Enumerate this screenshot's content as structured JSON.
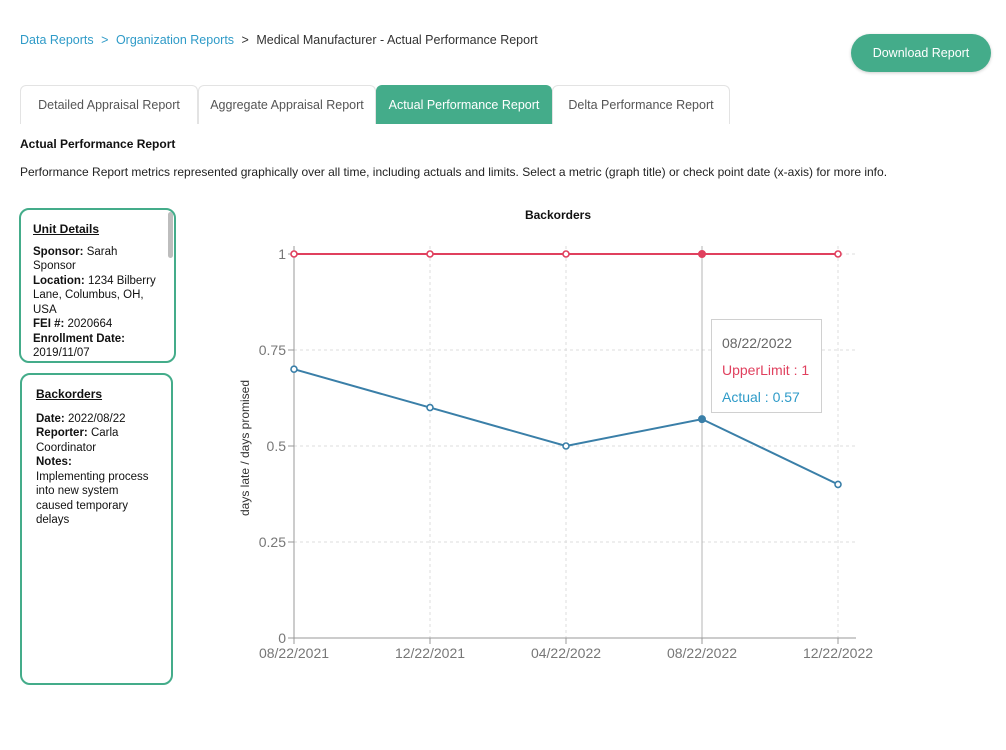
{
  "breadcrumb": {
    "items": [
      "Data Reports",
      "Organization Reports"
    ],
    "separator": ">",
    "current": "Medical Manufacturer - Actual Performance Report"
  },
  "download_label": "Download Report",
  "tabs": [
    {
      "label": "Detailed Appraisal Report",
      "active": false
    },
    {
      "label": "Aggregate Appraisal Report",
      "active": false
    },
    {
      "label": "Actual Performance Report",
      "active": true
    },
    {
      "label": "Delta Performance Report",
      "active": false
    }
  ],
  "section": {
    "title": "Actual Performance Report",
    "description": "Performance Report metrics represented graphically over all time, including actuals and limits. Select a metric (graph title) or check point date (x-axis) for more info."
  },
  "unit_details": {
    "title": "Unit Details",
    "sponsor_label": "Sponsor:",
    "sponsor": "Sarah Sponsor",
    "location_label": "Location:",
    "location": "1234 Bilberry Lane, Columbus, OH, USA",
    "fei_label": "FEI #:",
    "fei": "2020664",
    "enrollment_label": "Enrollment Date:",
    "enrollment": "2019/11/07"
  },
  "metric_card": {
    "title": "Backorders",
    "date_label": "Date:",
    "date": "2022/08/22",
    "reporter_label": "Reporter:",
    "reporter": "Carla Coordinator",
    "notes_label": "Notes:",
    "notes": "Implementing process into new system caused temporary delays"
  },
  "tooltip": {
    "date": "08/22/2022",
    "upper": "UpperLimit : 1",
    "actual": "Actual : 0.57"
  },
  "colors": {
    "accent": "#44ac8a",
    "link": "#2f9bc8",
    "upper_limit": "#e0405e",
    "actual": "#3a7fa8"
  },
  "chart_data": {
    "type": "line",
    "title": "Backorders",
    "ylabel": "days late / days promised",
    "xlabel": "",
    "categories": [
      "08/22/2021",
      "12/22/2021",
      "04/22/2022",
      "08/22/2022",
      "12/22/2022"
    ],
    "series": [
      {
        "name": "UpperLimit",
        "values": [
          1,
          1,
          1,
          1,
          1
        ]
      },
      {
        "name": "Actual",
        "values": [
          0.7,
          0.6,
          0.5,
          0.57,
          0.4
        ]
      }
    ],
    "ylim": [
      0,
      1
    ],
    "yticks": [
      "0",
      "0.25",
      "0.5",
      "0.75",
      "1"
    ],
    "grid": true,
    "highlight_index": 3
  }
}
